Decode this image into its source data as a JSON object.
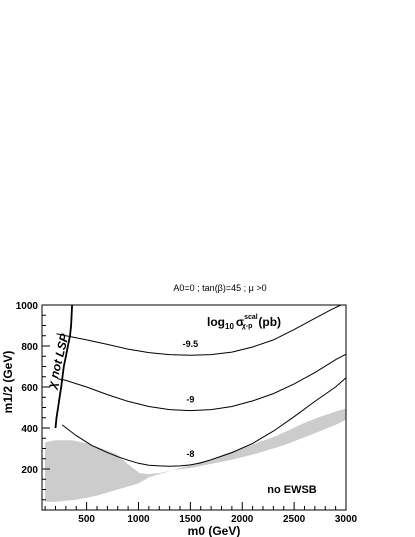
{
  "chart_data": {
    "type": "line",
    "title": "A0=0 ; tan(β)=45 ; μ >0",
    "xlabel": "m0 (GeV)",
    "ylabel": "m1/2 (GeV)",
    "xlim": [
      70,
      3000
    ],
    "ylim": [
      0,
      1000
    ],
    "x_ticks": [
      500,
      1000,
      1500,
      2000,
      2500,
      3000
    ],
    "y_ticks": [
      200,
      400,
      600,
      800,
      1000
    ],
    "grid": false,
    "quantity_label": {
      "base": "log",
      "sub": "10",
      "sigma": "σ",
      "sup": "scal",
      "sigma_sub": "χ-p",
      "unit": "(pb)"
    },
    "series": [
      {
        "label": "-9.5",
        "x": [
          210,
          300,
          500,
          700,
          900,
          1100,
          1300,
          1500,
          1700,
          1900,
          2100,
          2300,
          2500,
          2700,
          2850,
          2950
        ],
        "y": [
          860,
          850,
          830,
          808,
          785,
          768,
          758,
          755,
          758,
          770,
          795,
          830,
          880,
          935,
          975,
          1000
        ]
      },
      {
        "label": "-9",
        "x": [
          220,
          300,
          500,
          700,
          900,
          1100,
          1300,
          1500,
          1700,
          1900,
          2100,
          2300,
          2500,
          2700,
          2900,
          3000
        ],
        "y": [
          640,
          632,
          600,
          563,
          530,
          505,
          490,
          485,
          490,
          505,
          532,
          568,
          615,
          670,
          733,
          760
        ]
      },
      {
        "label": "-8",
        "x": [
          265,
          400,
          550,
          700,
          800,
          900,
          1000,
          1100,
          1200,
          1300,
          1400,
          1500,
          1600,
          1700,
          1900,
          2100,
          2300,
          2500,
          2700,
          2900,
          3000
        ],
        "y": [
          415,
          363,
          315,
          280,
          260,
          243,
          228,
          218,
          215,
          213,
          215,
          220,
          230,
          245,
          280,
          325,
          385,
          455,
          530,
          600,
          645
        ]
      }
    ],
    "lsp_boundary": {
      "label": "χ not LSP",
      "x": [
        360,
        355,
        350,
        340,
        320,
        300,
        280,
        255,
        240,
        225,
        210,
        200
      ],
      "y": [
        1000,
        950,
        900,
        850,
        800,
        750,
        700,
        600,
        550,
        500,
        450,
        400
      ]
    },
    "excluded_region": {
      "description_label": "",
      "x": [
        100,
        200,
        360,
        500,
        650,
        800,
        870,
        960,
        1010,
        1100,
        1200,
        1340,
        1500,
        1700,
        1900,
        2100,
        2300,
        2450,
        2600,
        2750,
        2900,
        3000,
        3000,
        2900,
        2750,
        2600,
        2450,
        2300,
        2100,
        1900,
        1700,
        1500,
        1300,
        1100,
        1000,
        800,
        600,
        400,
        200,
        100
      ],
      "y": [
        330,
        340,
        340,
        325,
        300,
        270,
        235,
        200,
        180,
        175,
        180,
        195,
        205,
        225,
        245,
        270,
        300,
        325,
        355,
        385,
        415,
        440,
        495,
        480,
        455,
        425,
        390,
        355,
        320,
        285,
        250,
        220,
        190,
        160,
        130,
        100,
        70,
        50,
        40,
        40
      ]
    },
    "annotations": {
      "no_ewsb": "no EWSB"
    }
  }
}
